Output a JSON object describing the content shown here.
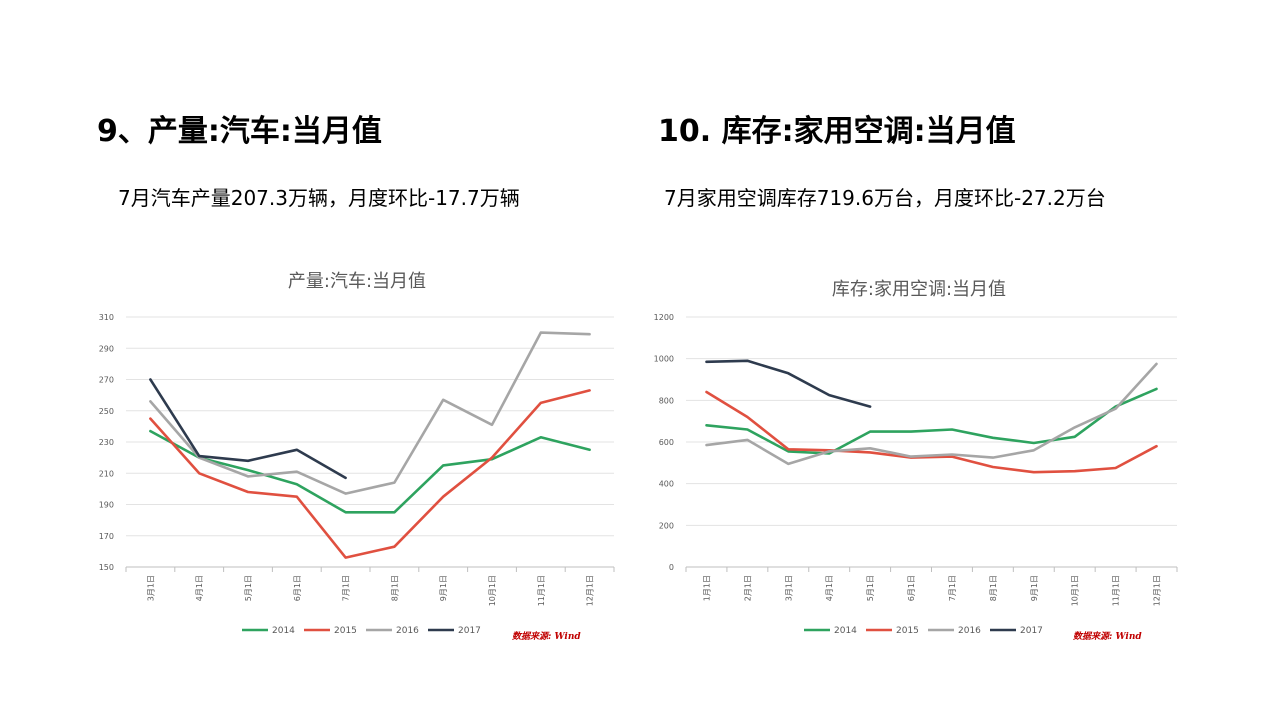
{
  "slide": {
    "left": {
      "heading": "9、产量:汽车:当月值",
      "subtitle": "7月汽车产量207.3万辆，月度环比-17.7万辆"
    },
    "right": {
      "heading": "10. 库存:家用空调:当月值",
      "subtitle": "7月家用空调库存719.6万台，月度环比-27.2万台"
    }
  },
  "chart_data": [
    {
      "type": "line",
      "title": "产量:汽车:当月值",
      "categories": [
        "3月1日",
        "4月1日",
        "5月1日",
        "6月1日",
        "7月1日",
        "8月1日",
        "9月1日",
        "10月1日",
        "11月1日",
        "12月1日"
      ],
      "ylim": [
        150,
        310
      ],
      "yticks": [
        150,
        170,
        190,
        210,
        230,
        250,
        270,
        290,
        310
      ],
      "grid": true,
      "legend_position": "bottom",
      "source": "数据来源: Wind",
      "series": [
        {
          "name": "2014",
          "color": "#2ea35f",
          "values": [
            237,
            220,
            212,
            203,
            185,
            185,
            215,
            219,
            233,
            225
          ]
        },
        {
          "name": "2015",
          "color": "#e05040",
          "values": [
            245,
            210,
            198,
            195,
            156,
            163,
            195,
            220,
            255,
            263
          ]
        },
        {
          "name": "2016",
          "color": "#a6a6a6",
          "values": [
            256,
            220,
            208,
            211,
            197,
            204,
            257,
            241,
            300,
            299
          ]
        },
        {
          "name": "2017",
          "color": "#2e3b4e",
          "values": [
            270,
            221,
            218,
            225,
            207,
            null,
            null,
            null,
            null,
            null
          ]
        }
      ]
    },
    {
      "type": "line",
      "title": "库存:家用空调:当月值",
      "categories": [
        "1月1日",
        "2月1日",
        "3月1日",
        "4月1日",
        "5月1日",
        "6月1日",
        "7月1日",
        "8月1日",
        "9月1日",
        "10月1日",
        "11月1日",
        "12月1日"
      ],
      "ylim": [
        0,
        1200
      ],
      "yticks": [
        0,
        200,
        400,
        600,
        800,
        1000,
        1200
      ],
      "grid": true,
      "legend_position": "bottom",
      "source": "数据来源: Wind",
      "series": [
        {
          "name": "2014",
          "color": "#2ea35f",
          "values": [
            680,
            660,
            555,
            545,
            650,
            650,
            660,
            620,
            595,
            625,
            770,
            855
          ]
        },
        {
          "name": "2015",
          "color": "#e05040",
          "values": [
            840,
            720,
            565,
            560,
            550,
            525,
            530,
            480,
            455,
            460,
            475,
            580
          ]
        },
        {
          "name": "2016",
          "color": "#a6a6a6",
          "values": [
            585,
            610,
            495,
            555,
            570,
            530,
            540,
            525,
            560,
            670,
            760,
            975
          ]
        },
        {
          "name": "2017",
          "color": "#2e3b4e",
          "values": [
            985,
            990,
            930,
            825,
            770,
            null,
            null,
            null,
            null,
            null,
            null,
            null
          ]
        }
      ]
    }
  ]
}
